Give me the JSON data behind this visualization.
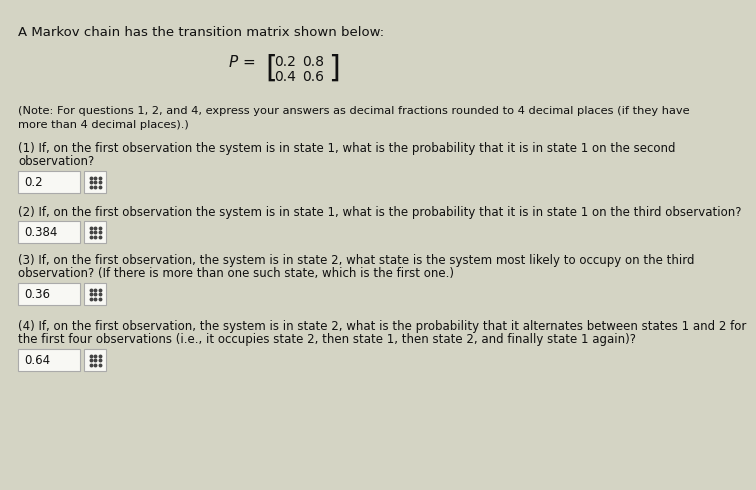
{
  "title_line": "A Markov chain has the transition matrix shown below:",
  "matrix_row1": "0.2   0.8",
  "matrix_row2": "0.4   0.6",
  "note_line1": "(Note: For questions 1, 2, and 4, express your answers as decimal fractions rounded to 4 decimal places (if they have",
  "note_line2": "more than 4 decimal places).)",
  "questions": [
    {
      "number": "(1)",
      "text_line1": "If, on the first observation the system is in state 1, what is the probability that it is in state 1 on the second",
      "text_line2": "observation?",
      "answer": "0.2"
    },
    {
      "number": "(2)",
      "text_line1": "If, on the first observation the system is in state 1, what is the probability that it is in state 1 on the third observation?",
      "text_line2": "",
      "answer": "0.384"
    },
    {
      "number": "(3)",
      "text_line1": "If, on the first observation, the system is in state 2, what state is the system most likely to occupy on the third",
      "text_line2": "observation? (If there is more than one such state, which is the first one.)",
      "answer": "0.36"
    },
    {
      "number": "(4)",
      "text_line1": "If, on the first observation, the system is in state 2, what is the probability that it alternates between states 1 and 2 for",
      "text_line2": "the first four observations (i.e., it occupies state 2, then state 1, then state 2, and finally state 1 again)?",
      "answer": "0.64"
    }
  ],
  "bg_color": "#d4d4c4",
  "text_color": "#111111",
  "answer_box_bg": "#f8f8f4",
  "answer_box_border": "#aaaaaa",
  "grid_icon_color": "#444444"
}
